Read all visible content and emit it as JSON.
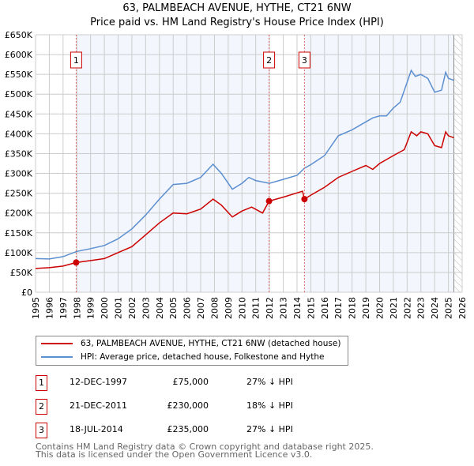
{
  "chart_data": {
    "type": "line",
    "title": "63, PALMBEACH AVENUE, HYTHE, CT21 6NW",
    "subtitle": "Price paid vs. HM Land Registry's House Price Index (HPI)",
    "xlim": [
      1995,
      2026
    ],
    "ylim": [
      0,
      650000
    ],
    "x_ticks": [
      "1995",
      "1996",
      "1997",
      "1998",
      "1999",
      "2000",
      "2001",
      "2002",
      "2003",
      "2004",
      "2005",
      "2006",
      "2007",
      "2008",
      "2009",
      "2010",
      "2011",
      "2012",
      "2013",
      "2014",
      "2015",
      "2016",
      "2017",
      "2018",
      "2019",
      "2020",
      "2021",
      "2022",
      "2023",
      "2024",
      "2025",
      "2026"
    ],
    "y_ticks": [
      "£0",
      "£50K",
      "£100K",
      "£150K",
      "£200K",
      "£250K",
      "£300K",
      "£350K",
      "£400K",
      "£450K",
      "£500K",
      "£550K",
      "£600K",
      "£650K"
    ],
    "grid": true,
    "series": [
      {
        "name": "63, PALMBEACH AVENUE, HYTHE, CT21 6NW (detached house)",
        "color": "#cc0000",
        "x": [
          1995,
          1996,
          1997,
          1997.95,
          1999,
          2000,
          2001,
          2002,
          2003,
          2004,
          2005,
          2006,
          2007,
          2007.9,
          2008.5,
          2009.3,
          2010,
          2010.7,
          2011.5,
          2011.97,
          2013,
          2014.4,
          2014.54,
          2015,
          2016,
          2017,
          2018,
          2019,
          2019.5,
          2020,
          2021,
          2021.8,
          2022.3,
          2022.7,
          2023,
          2023.5,
          2024,
          2024.5,
          2024.8,
          2025,
          2025.4
        ],
        "values": [
          60000,
          62000,
          66000,
          75000,
          80000,
          85000,
          100000,
          115000,
          145000,
          175000,
          200000,
          198000,
          210000,
          235000,
          220000,
          190000,
          205000,
          215000,
          200000,
          230000,
          240000,
          255000,
          235000,
          245000,
          265000,
          290000,
          305000,
          320000,
          310000,
          325000,
          345000,
          360000,
          405000,
          395000,
          405000,
          400000,
          370000,
          365000,
          405000,
          395000,
          390000
        ]
      },
      {
        "name": "HPI: Average price, detached house, Folkestone and Hythe",
        "color": "#5b8fd0",
        "x": [
          1995,
          1996,
          1997,
          1998,
          1999,
          2000,
          2001,
          2002,
          2003,
          2004,
          2005,
          2006,
          2007,
          2007.9,
          2008.5,
          2009.3,
          2010,
          2010.5,
          2011,
          2012,
          2013,
          2014,
          2014.54,
          2015,
          2016,
          2017,
          2018,
          2019,
          2019.5,
          2020,
          2020.5,
          2021,
          2021.5,
          2022,
          2022.3,
          2022.6,
          2023,
          2023.5,
          2024,
          2024.5,
          2024.8,
          2025,
          2025.4
        ],
        "values": [
          85000,
          84000,
          90000,
          103000,
          110000,
          118000,
          135000,
          160000,
          195000,
          235000,
          272000,
          275000,
          290000,
          323000,
          300000,
          260000,
          275000,
          290000,
          282000,
          275000,
          285000,
          295000,
          313000,
          322000,
          345000,
          395000,
          410000,
          430000,
          440000,
          445000,
          445000,
          465000,
          480000,
          530000,
          560000,
          545000,
          550000,
          540000,
          505000,
          510000,
          555000,
          540000,
          535000
        ]
      }
    ],
    "sales": [
      {
        "label": "1",
        "date": "12-DEC-1997",
        "x": 1997.95,
        "price": "£75,000",
        "value": 75000,
        "hpi": "27% ↓ HPI"
      },
      {
        "label": "2",
        "date": "21-DEC-2011",
        "x": 2011.97,
        "price": "£230,000",
        "value": 230000,
        "hpi": "18% ↓ HPI"
      },
      {
        "label": "3",
        "date": "18-JUL-2014",
        "x": 2014.54,
        "price": "£235,000",
        "value": 235000,
        "hpi": "27% ↓ HPI"
      }
    ],
    "forecast_start": 2025.4
  },
  "footer": {
    "line1": "Contains HM Land Registry data © Crown copyright and database right 2025.",
    "line2": "This data is licensed under the Open Government Licence v3.0."
  }
}
